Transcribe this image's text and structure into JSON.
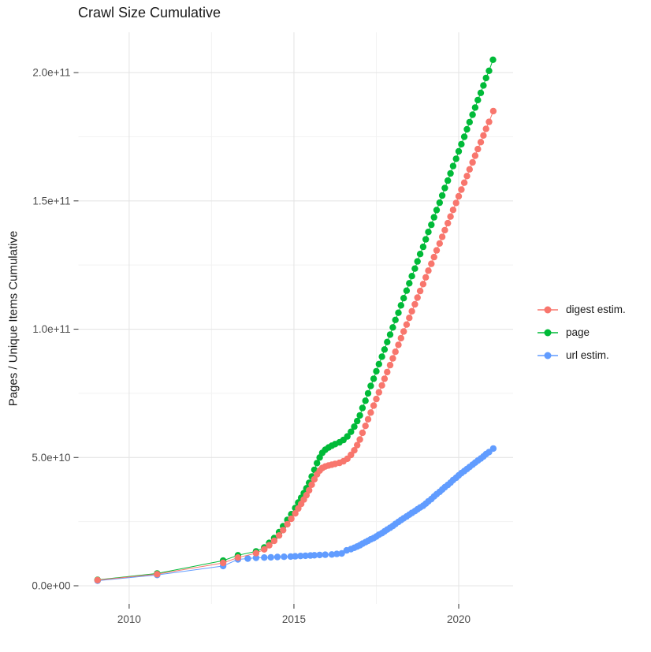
{
  "chart_data": {
    "type": "line",
    "title": "Crawl Size Cumulative",
    "xlabel": "",
    "ylabel": "Pages / Unique Items Cumulative",
    "xlim": [
      2008.46,
      2021.65
    ],
    "ylim": [
      -7070000000.0,
      215700000000.0
    ],
    "grid": true,
    "legend_position": "right",
    "x_ticks": [
      {
        "value": 2010,
        "label": "2010"
      },
      {
        "value": 2015,
        "label": "2015"
      },
      {
        "value": 2020,
        "label": "2020"
      }
    ],
    "x_minor_gridlines": [
      2012.5,
      2017.5
    ],
    "y_ticks": [
      {
        "value": 0,
        "label": "0.0e+00"
      },
      {
        "value": 50000000000.0,
        "label": "5.0e+10"
      },
      {
        "value": 100000000000.0,
        "label": "1.0e+11"
      },
      {
        "value": 150000000000.0,
        "label": "1.5e+11"
      },
      {
        "value": 200000000000.0,
        "label": "2.0e+11"
      }
    ],
    "y_minor_gridlines": [
      25000000000.0,
      75000000000.0,
      125000000000.0,
      175000000000.0
    ],
    "draw_order": [
      2,
      1,
      0
    ],
    "series": [
      {
        "name": "digest estim.",
        "color": "#F8766D",
        "points": [
          [
            2009.04,
            2200000000.0
          ],
          [
            2010.85,
            4500000000.0
          ],
          [
            2012.85,
            8900000000.0
          ],
          [
            2013.3,
            11000000000.0
          ],
          [
            2013.85,
            12700000000.0
          ],
          [
            2014.1,
            14200000000.0
          ],
          [
            2014.25,
            15800000000.0
          ],
          [
            2014.4,
            17500000000.0
          ],
          [
            2014.55,
            19600000000.0
          ],
          [
            2014.67,
            21700000000.0
          ],
          [
            2014.8,
            24000000000.0
          ],
          [
            2014.92,
            26100000000.0
          ],
          [
            2015.04,
            28200000000.0
          ],
          [
            2015.13,
            30100000000.0
          ],
          [
            2015.22,
            31900000000.0
          ],
          [
            2015.3,
            33600000000.0
          ],
          [
            2015.38,
            35300000000.0
          ],
          [
            2015.46,
            37200000000.0
          ],
          [
            2015.54,
            39400000000.0
          ],
          [
            2015.62,
            41500000000.0
          ],
          [
            2015.7,
            43400000000.0
          ],
          [
            2015.78,
            44900000000.0
          ],
          [
            2015.86,
            45900000000.0
          ],
          [
            2015.95,
            46500000000.0
          ],
          [
            2016.05,
            46900000000.0
          ],
          [
            2016.15,
            47200000000.0
          ],
          [
            2016.25,
            47500000000.0
          ],
          [
            2016.38,
            47900000000.0
          ],
          [
            2016.5,
            48500000000.0
          ],
          [
            2016.62,
            49500000000.0
          ],
          [
            2016.73,
            51000000000.0
          ],
          [
            2016.83,
            52800000000.0
          ],
          [
            2016.92,
            54800000000.0
          ],
          [
            2017,
            57000000000.0
          ],
          [
            2017.08,
            59600000000.0
          ],
          [
            2017.17,
            62300000000.0
          ],
          [
            2017.25,
            64900000000.0
          ],
          [
            2017.33,
            67500000000.0
          ],
          [
            2017.42,
            70200000000.0
          ],
          [
            2017.5,
            72800000000.0
          ],
          [
            2017.58,
            75400000000.0
          ],
          [
            2017.67,
            78100000000.0
          ],
          [
            2017.75,
            80700000000.0
          ],
          [
            2017.83,
            83300000000.0
          ],
          [
            2017.92,
            86000000000.0
          ],
          [
            2018,
            88600000000.0
          ],
          [
            2018.08,
            91200000000.0
          ],
          [
            2018.17,
            93900000000.0
          ],
          [
            2018.25,
            96500000000.0
          ],
          [
            2018.33,
            99100000000.0
          ],
          [
            2018.42,
            101800000000.0
          ],
          [
            2018.5,
            104400000000.0
          ],
          [
            2018.58,
            107000000000.0
          ],
          [
            2018.67,
            109700000000.0
          ],
          [
            2018.75,
            112300000000.0
          ],
          [
            2018.83,
            114900000000.0
          ],
          [
            2018.92,
            117600000000.0
          ],
          [
            2019,
            120200000000.0
          ],
          [
            2019.08,
            122800000000.0
          ],
          [
            2019.17,
            125500000000.0
          ],
          [
            2019.25,
            128100000000.0
          ],
          [
            2019.33,
            130700000000.0
          ],
          [
            2019.42,
            133400000000.0
          ],
          [
            2019.5,
            136000000000.0
          ],
          [
            2019.58,
            138600000000.0
          ],
          [
            2019.67,
            141300000000.0
          ],
          [
            2019.75,
            143900000000.0
          ],
          [
            2019.83,
            146500000000.0
          ],
          [
            2019.92,
            149200000000.0
          ],
          [
            2020,
            151800000000.0
          ],
          [
            2020.08,
            154400000000.0
          ],
          [
            2020.17,
            157100000000.0
          ],
          [
            2020.25,
            159700000000.0
          ],
          [
            2020.33,
            162300000000.0
          ],
          [
            2020.42,
            165000000000.0
          ],
          [
            2020.5,
            167600000000.0
          ],
          [
            2020.58,
            170200000000.0
          ],
          [
            2020.67,
            172900000000.0
          ],
          [
            2020.75,
            175500000000.0
          ],
          [
            2020.83,
            178100000000.0
          ],
          [
            2020.92,
            180800000000.0
          ],
          [
            2021.05,
            185000000000.0
          ]
        ]
      },
      {
        "name": "page",
        "color": "#00BA38",
        "points": [
          [
            2009.04,
            2300000000.0
          ],
          [
            2010.85,
            4800000000.0
          ],
          [
            2012.85,
            9800000000.0
          ],
          [
            2013.3,
            11900000000.0
          ],
          [
            2013.85,
            13400000000.0
          ],
          [
            2014.1,
            14900000000.0
          ],
          [
            2014.25,
            16700000000.0
          ],
          [
            2014.4,
            18600000000.0
          ],
          [
            2014.55,
            20900000000.0
          ],
          [
            2014.67,
            23200000000.0
          ],
          [
            2014.8,
            25700000000.0
          ],
          [
            2014.92,
            27900000000.0
          ],
          [
            2015.04,
            30300000000.0
          ],
          [
            2015.13,
            32400000000.0
          ],
          [
            2015.22,
            34300000000.0
          ],
          [
            2015.3,
            36100000000.0
          ],
          [
            2015.38,
            38000000000.0
          ],
          [
            2015.46,
            40100000000.0
          ],
          [
            2015.54,
            42600000000.0
          ],
          [
            2015.62,
            45200000000.0
          ],
          [
            2015.7,
            47800000000.0
          ],
          [
            2015.78,
            50000000000.0
          ],
          [
            2015.86,
            51800000000.0
          ],
          [
            2015.95,
            53000000000.0
          ],
          [
            2016.05,
            53900000000.0
          ],
          [
            2016.15,
            54600000000.0
          ],
          [
            2016.25,
            55200000000.0
          ],
          [
            2016.38,
            55900000000.0
          ],
          [
            2016.5,
            56800000000.0
          ],
          [
            2016.62,
            58200000000.0
          ],
          [
            2016.73,
            60000000000.0
          ],
          [
            2016.83,
            62000000000.0
          ],
          [
            2016.92,
            64200000000.0
          ],
          [
            2017,
            66400000000.0
          ],
          [
            2017.08,
            69300000000.0
          ],
          [
            2017.17,
            72100000000.0
          ],
          [
            2017.25,
            75000000000.0
          ],
          [
            2017.33,
            77900000000.0
          ],
          [
            2017.42,
            80700000000.0
          ],
          [
            2017.5,
            83600000000.0
          ],
          [
            2017.58,
            86400000000.0
          ],
          [
            2017.67,
            89300000000.0
          ],
          [
            2017.75,
            92100000000.0
          ],
          [
            2017.83,
            95000000000.0
          ],
          [
            2017.92,
            97900000000.0
          ],
          [
            2018,
            100700000000.0
          ],
          [
            2018.08,
            103600000000.0
          ],
          [
            2018.17,
            106400000000.0
          ],
          [
            2018.25,
            109300000000.0
          ],
          [
            2018.33,
            112100000000.0
          ],
          [
            2018.42,
            115000000000.0
          ],
          [
            2018.5,
            117900000000.0
          ],
          [
            2018.58,
            120700000000.0
          ],
          [
            2018.67,
            123600000000.0
          ],
          [
            2018.75,
            126400000000.0
          ],
          [
            2018.83,
            129300000000.0
          ],
          [
            2018.92,
            132100000000.0
          ],
          [
            2019,
            135000000000.0
          ],
          [
            2019.08,
            137900000000.0
          ],
          [
            2019.17,
            140700000000.0
          ],
          [
            2019.25,
            143600000000.0
          ],
          [
            2019.33,
            146400000000.0
          ],
          [
            2019.42,
            149300000000.0
          ],
          [
            2019.5,
            152100000000.0
          ],
          [
            2019.58,
            155000000000.0
          ],
          [
            2019.67,
            157900000000.0
          ],
          [
            2019.75,
            160700000000.0
          ],
          [
            2019.83,
            163600000000.0
          ],
          [
            2019.92,
            166400000000.0
          ],
          [
            2020,
            169300000000.0
          ],
          [
            2020.08,
            172100000000.0
          ],
          [
            2020.17,
            175000000000.0
          ],
          [
            2020.25,
            177900000000.0
          ],
          [
            2020.33,
            180700000000.0
          ],
          [
            2020.42,
            183600000000.0
          ],
          [
            2020.5,
            186400000000.0
          ],
          [
            2020.58,
            189300000000.0
          ],
          [
            2020.67,
            192100000000.0
          ],
          [
            2020.75,
            195000000000.0
          ],
          [
            2020.83,
            197900000000.0
          ],
          [
            2020.92,
            200700000000.0
          ],
          [
            2021.04,
            205000000000.0
          ]
        ]
      },
      {
        "name": "url estim.",
        "color": "#619CFF",
        "points": [
          [
            2009.04,
            2000000000.0
          ],
          [
            2010.85,
            4200000000.0
          ],
          [
            2012.85,
            7700000000.0
          ],
          [
            2013.3,
            10300000000.0
          ],
          [
            2013.6,
            10600000000.0
          ],
          [
            2013.85,
            10900000000.0
          ],
          [
            2014.1,
            11000000000.0
          ],
          [
            2014.3,
            11100000000.0
          ],
          [
            2014.5,
            11200000000.0
          ],
          [
            2014.7,
            11300000000.0
          ],
          [
            2014.9,
            11400000000.0
          ],
          [
            2015.04,
            11500000000.0
          ],
          [
            2015.2,
            11600000000.0
          ],
          [
            2015.35,
            11700000000.0
          ],
          [
            2015.5,
            11800000000.0
          ],
          [
            2015.62,
            11900000000.0
          ],
          [
            2015.78,
            12000000000.0
          ],
          [
            2015.95,
            12100000000.0
          ],
          [
            2016.15,
            12200000000.0
          ],
          [
            2016.3,
            12400000000.0
          ],
          [
            2016.45,
            12600000000.0
          ],
          [
            2016.6,
            13800000000.0
          ],
          [
            2016.73,
            14300000000.0
          ],
          [
            2016.83,
            14800000000.0
          ],
          [
            2016.92,
            15300000000.0
          ],
          [
            2017,
            15800000000.0
          ],
          [
            2017.08,
            16400000000.0
          ],
          [
            2017.17,
            17000000000.0
          ],
          [
            2017.25,
            17500000000.0
          ],
          [
            2017.33,
            18100000000.0
          ],
          [
            2017.42,
            18600000000.0
          ],
          [
            2017.5,
            19200000000.0
          ],
          [
            2017.58,
            19900000000.0
          ],
          [
            2017.67,
            20500000000.0
          ],
          [
            2017.75,
            21200000000.0
          ],
          [
            2017.83,
            21900000000.0
          ],
          [
            2017.92,
            22600000000.0
          ],
          [
            2018,
            23300000000.0
          ],
          [
            2018.08,
            24100000000.0
          ],
          [
            2018.17,
            24900000000.0
          ],
          [
            2018.25,
            25600000000.0
          ],
          [
            2018.33,
            26300000000.0
          ],
          [
            2018.42,
            27000000000.0
          ],
          [
            2018.5,
            27700000000.0
          ],
          [
            2018.58,
            28400000000.0
          ],
          [
            2018.67,
            29100000000.0
          ],
          [
            2018.75,
            29800000000.0
          ],
          [
            2018.83,
            30500000000.0
          ],
          [
            2018.92,
            31200000000.0
          ],
          [
            2019,
            32000000000.0
          ],
          [
            2019.08,
            32900000000.0
          ],
          [
            2019.17,
            33800000000.0
          ],
          [
            2019.25,
            34800000000.0
          ],
          [
            2019.33,
            35700000000.0
          ],
          [
            2019.42,
            36600000000.0
          ],
          [
            2019.5,
            37500000000.0
          ],
          [
            2019.58,
            38400000000.0
          ],
          [
            2019.67,
            39300000000.0
          ],
          [
            2019.75,
            40200000000.0
          ],
          [
            2019.83,
            41200000000.0
          ],
          [
            2019.92,
            42100000000.0
          ],
          [
            2020,
            43000000000.0
          ],
          [
            2020.08,
            43900000000.0
          ],
          [
            2020.17,
            44700000000.0
          ],
          [
            2020.25,
            45500000000.0
          ],
          [
            2020.33,
            46300000000.0
          ],
          [
            2020.42,
            47200000000.0
          ],
          [
            2020.5,
            48000000000.0
          ],
          [
            2020.58,
            48800000000.0
          ],
          [
            2020.67,
            49600000000.0
          ],
          [
            2020.75,
            50400000000.0
          ],
          [
            2020.83,
            51300000000.0
          ],
          [
            2020.92,
            52100000000.0
          ],
          [
            2021.05,
            53500000000.0
          ]
        ]
      }
    ],
    "style": {
      "major_gridline_color": "#e5e5e5",
      "minor_gridline_color": "#f2f2f2",
      "tick_color": "#333333",
      "tick_label_color": "#4d4d4d",
      "background": "#ffffff"
    }
  }
}
